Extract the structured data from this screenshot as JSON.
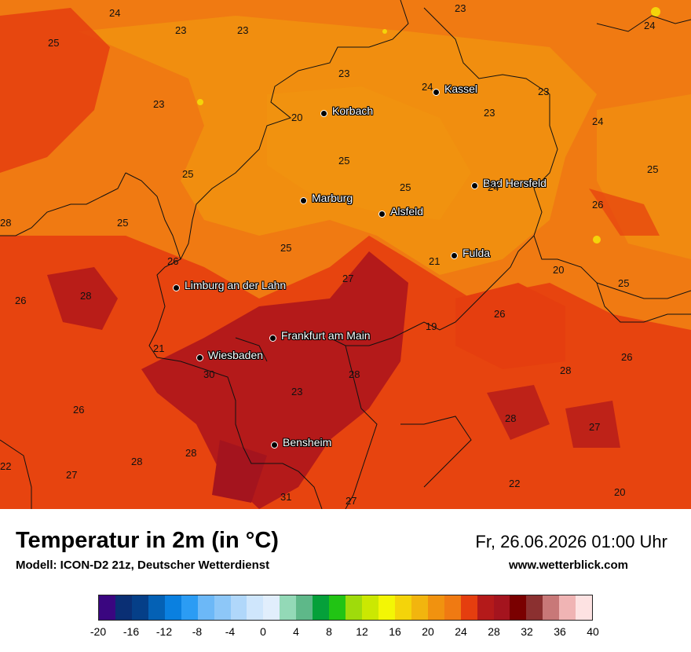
{
  "map": {
    "cities": [
      {
        "name": "Kassel"
      },
      {
        "name": "Korbach"
      },
      {
        "name": "Bad Hersfeld"
      },
      {
        "name": "Marburg"
      },
      {
        "name": "Alsfeld"
      },
      {
        "name": "Fulda"
      },
      {
        "name": "Limburg an der Lahn"
      },
      {
        "name": "Frankfurt am Main"
      },
      {
        "name": "Wiesbaden"
      },
      {
        "name": "Bensheim"
      }
    ],
    "values": [
      "24",
      "23",
      "23",
      "23",
      "24",
      "25",
      "23",
      "24",
      "23",
      "23",
      "20",
      "23",
      "24",
      "25",
      "25",
      "25",
      "24",
      "26",
      "28",
      "25",
      "25",
      "26",
      "21",
      "20",
      "25",
      "25",
      "27",
      "26",
      "28",
      "19",
      "26",
      "21",
      "28",
      "30",
      "23",
      "28",
      "26",
      "26",
      "28",
      "27",
      "28",
      "22",
      "22",
      "27",
      "31",
      "27",
      "20"
    ]
  },
  "footer": {
    "title": "Temperatur in 2m (in °C)",
    "model": "Modell: ICON-D2 21z, Deutscher Wetterdienst",
    "datetime": "Fr, 26.06.2026 01:00 Uhr",
    "website": "www.wetterblick.com"
  },
  "legend": {
    "colors": [
      "#3a0680",
      "#0a2f74",
      "#053f88",
      "#0461b5",
      "#0a80e0",
      "#2b9cf4",
      "#6cb8f7",
      "#8dc7f8",
      "#b0d7fa",
      "#cfe6fc",
      "#e1eefc",
      "#93d9b7",
      "#5eb889",
      "#05a03a",
      "#21c414",
      "#9fdb0b",
      "#cbe802",
      "#f3f605",
      "#f4d40a",
      "#f2b50e",
      "#f1920f",
      "#f07a12",
      "#e53e0f",
      "#b41a1a",
      "#a4141e",
      "#7a0000",
      "#8b3030",
      "#c87878",
      "#f0b4b4",
      "#fde2e2"
    ],
    "ticks": [
      "-20",
      "-16",
      "-12",
      "-8",
      "-4",
      "0",
      "4",
      "8",
      "12",
      "16",
      "20",
      "24",
      "28",
      "32",
      "36",
      "40"
    ]
  }
}
